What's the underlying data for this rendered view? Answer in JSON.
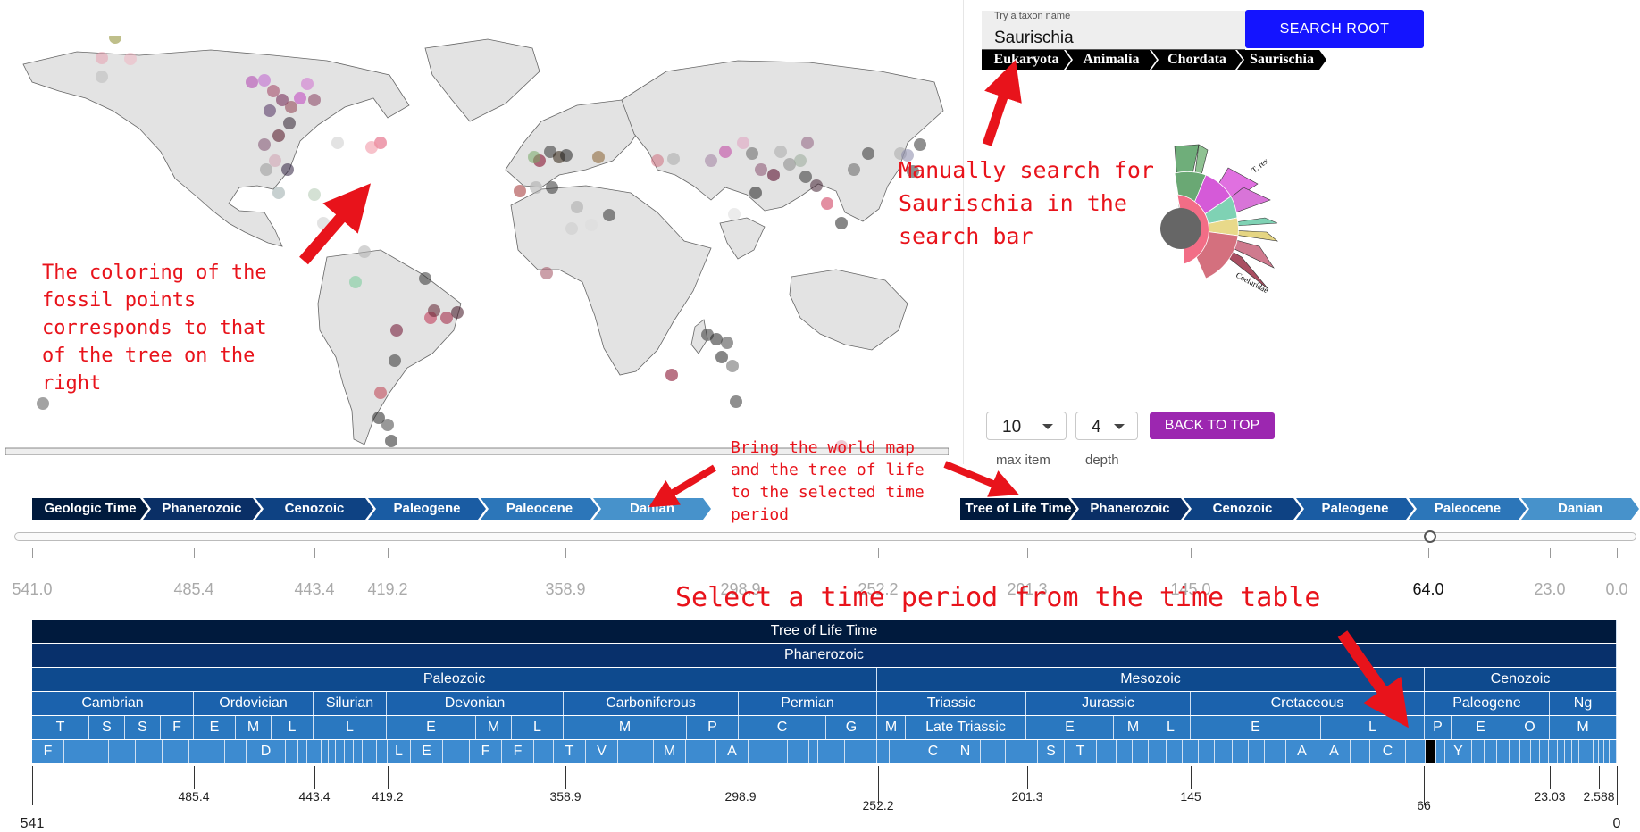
{
  "search": {
    "label": "Try a taxon name",
    "value": "Saurischia",
    "button": "SEARCH ROOT"
  },
  "taxon_breadcrumbs": [
    "Eukaryota",
    "Animalia",
    "Chordata",
    "Saurischia"
  ],
  "tree_labels": {
    "trex": "T. rex",
    "coelurid": "Coeluridae"
  },
  "controls": {
    "max_item": {
      "value": "10",
      "label": "max item"
    },
    "depth": {
      "value": "4",
      "label": "depth"
    },
    "back_button": "BACK TO TOP"
  },
  "annotations": {
    "map_coloring": "The coloring of the\nfossil points\ncorresponds to that\nof the tree on the\nright",
    "manual_search": "Manually search for\nSaurischia in the\nsearch bar",
    "bring": "Bring the world map\nand the tree of life\nto the selected time\nperiod",
    "select": "Select a time period from the time table"
  },
  "geo_breadcrumbs": [
    "Geologic Time",
    "Phanerozoic",
    "Cenozoic",
    "Paleogene",
    "Paleocene",
    "Danian"
  ],
  "tol_breadcrumbs": [
    "Tree of Life Time",
    "Phanerozoic",
    "Cenozoic",
    "Paleogene",
    "Paleocene",
    "Danian"
  ],
  "slider": {
    "ticks": [
      "541.0",
      "485.4",
      "443.4",
      "419.2",
      "358.9",
      "298.9",
      "252.2",
      "201.3",
      "145.0",
      "64.0",
      "23.0",
      "0.0"
    ],
    "current": "64.0"
  },
  "timescale": {
    "row0": "Tree of Life Time",
    "row1": "Phanerozoic",
    "eras": [
      "Paleozoic",
      "Mesozoic",
      "Cenozoic"
    ],
    "periods": [
      "Cambrian",
      "Ordovician",
      "Silurian",
      "Devonian",
      "Carboniferous",
      "Permian",
      "Triassic",
      "Jurassic",
      "Cretaceous",
      "Paleogene",
      "Ng"
    ],
    "epochs": [
      "T",
      "S",
      "S",
      "F",
      "E",
      "M",
      "L",
      "L",
      "E",
      "M",
      "L",
      "M",
      "P",
      "C",
      "G",
      "M",
      "Late Triassic",
      "E",
      "M",
      "L",
      "E",
      "L",
      "P",
      "E",
      "O",
      "M"
    ],
    "ages": [
      "F",
      "D",
      "L",
      "E",
      "F",
      "F",
      "T",
      "V",
      "M",
      "A",
      "C",
      "N",
      "S",
      "T",
      "A",
      "A",
      "C",
      "Y"
    ],
    "boundaries": [
      "541",
      "485.4",
      "443.4",
      "419.2",
      "358.9",
      "298.9",
      "252.2",
      "201.3",
      "145",
      "66",
      "23.03",
      "2.588",
      "0"
    ]
  }
}
